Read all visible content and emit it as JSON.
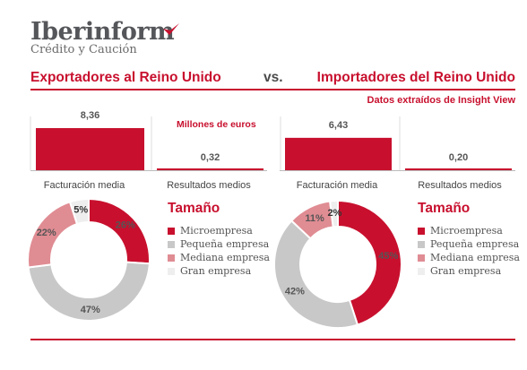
{
  "logo": {
    "name": "Iberinform",
    "subtitle": "Crédito y Caución"
  },
  "header": {
    "left": "Exportadores al Reino Unido",
    "vs": "vs.",
    "right": "Importadores del Reino Unido",
    "source": "Datos extraídos de Insight View"
  },
  "colors": {
    "red": "#c8102e",
    "pink": "#e08c93",
    "grey": "#c8c8c8",
    "lightgrey": "#eeeeee"
  },
  "chart_data": [
    {
      "type": "bar",
      "group": "Exportadores al Reino Unido",
      "categories": [
        "Facturación media",
        "Resultados medios"
      ],
      "values": [
        8.36,
        0.32
      ],
      "labels": [
        "8,36",
        "0,32"
      ],
      "units": "Millones de euros"
    },
    {
      "type": "bar",
      "group": "Importadores del Reino Unido",
      "categories": [
        "Facturación media",
        "Resultados medios"
      ],
      "values": [
        6.43,
        0.2
      ],
      "labels": [
        "6,43",
        "0,20"
      ]
    },
    {
      "type": "pie",
      "group": "Exportadores al Reino Unido",
      "title": "Tamaño",
      "categories": [
        "Microempresa",
        "Pequeña empresa",
        "Mediana empresa",
        "Gran empresa"
      ],
      "values": [
        26,
        47,
        22,
        5
      ],
      "labels": [
        "26%",
        "47%",
        "22%",
        "5%"
      ]
    },
    {
      "type": "pie",
      "group": "Importadores del Reino Unido",
      "title": "Tamaño",
      "categories": [
        "Microempresa",
        "Pequeña empresa",
        "Mediana empresa",
        "Gran empresa"
      ],
      "values": [
        45,
        42,
        11,
        2
      ],
      "labels": [
        "45%",
        "42%",
        "11%",
        "2%"
      ]
    }
  ]
}
